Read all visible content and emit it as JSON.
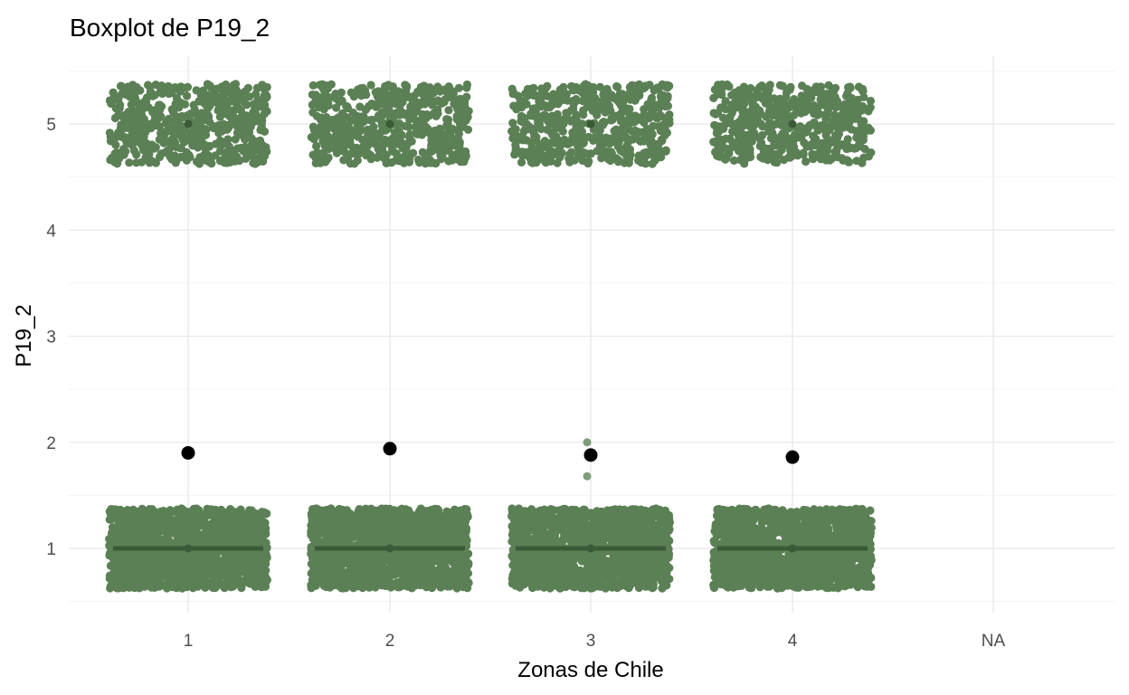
{
  "chart_data": {
    "type": "boxplot",
    "title": "Boxplot de P19_2",
    "xlabel": "Zonas de Chile",
    "ylabel": "P19_2",
    "categories": [
      "1",
      "2",
      "3",
      "4",
      "NA"
    ],
    "y_ticks": [
      "1",
      "2",
      "3",
      "4",
      "5"
    ],
    "ylim": [
      0.5,
      5.5
    ],
    "grid": true,
    "legend": "none",
    "medians": [
      1,
      1,
      1,
      1,
      null
    ],
    "means": [
      1.9,
      1.94,
      1.88,
      1.86,
      null
    ],
    "jitter_clusters": [
      {
        "category": "1",
        "levels": [
          1,
          5
        ]
      },
      {
        "category": "2",
        "levels": [
          1,
          5
        ]
      },
      {
        "category": "3",
        "levels": [
          1,
          5
        ]
      },
      {
        "category": "4",
        "levels": [
          1,
          5
        ]
      }
    ],
    "extra_points": [
      {
        "category": "3",
        "y": 2.0
      },
      {
        "category": "3",
        "y": 1.68
      }
    ],
    "colors": {
      "jitter": "#5b8055",
      "median": "#3b5a37",
      "mean": "#000000",
      "outlier": "#7f9c7b"
    }
  }
}
